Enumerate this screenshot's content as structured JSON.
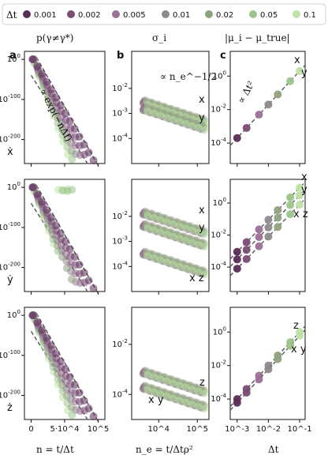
{
  "legend": {
    "title": "Δt",
    "entries": [
      {
        "label": "0.001",
        "color": "#5a2d57"
      },
      {
        "label": "0.002",
        "color": "#7a4d74"
      },
      {
        "label": "0.005",
        "color": "#9a7196"
      },
      {
        "label": "0.01",
        "color": "#8e8a8d"
      },
      {
        "label": "0.02",
        "color": "#8fa27f"
      },
      {
        "label": "0.05",
        "color": "#9dc48a"
      },
      {
        "label": "0.1",
        "color": "#bfe3a8"
      }
    ]
  },
  "columns": {
    "col0_title": "p(γ≠γ*)",
    "col1_title": "σ_i",
    "col2_title": "|μ_i − μ_true|"
  },
  "panel_letters": {
    "a": "a",
    "b": "b",
    "c": "c"
  },
  "row_labels": [
    "ẋ",
    "ẏ",
    "ż"
  ],
  "xlabels": {
    "col0": "n = t/Δt",
    "col1": "n_e = t/Δtρ²",
    "col2": "Δt"
  },
  "annotations": {
    "col0_fit": "∝ exp(−nΔf)",
    "col1_fit": "∝ n_e^−1/2",
    "col2_fit": "∝ Δt²"
  },
  "chart_data": [
    {
      "panel": "a-row1",
      "type": "scatter",
      "xlabel": "",
      "ylabel": "",
      "xlim": [
        -10000,
        110000
      ],
      "ylim": [
        -260,
        20
      ],
      "yscale": "log10",
      "xtick_labels": [],
      "ytick_labels": [
        "10^0",
        "10^-100",
        "10^-200"
      ],
      "row_label": "ẋ",
      "fit_line": "∝ exp(−nΔf)"
    },
    {
      "panel": "a-row2",
      "type": "scatter",
      "xlim": [
        -10000,
        110000
      ],
      "ylim": [
        -260,
        20
      ],
      "yscale": "log10",
      "ytick_labels": [
        "10^0",
        "10^-100",
        "10^-200"
      ],
      "row_label": "ẏ"
    },
    {
      "panel": "a-row3",
      "type": "scatter",
      "xlim": [
        -10000,
        110000
      ],
      "ylim": [
        -260,
        20
      ],
      "yscale": "log10",
      "xtick_labels": [
        "0",
        "5·10^4",
        "10^5"
      ],
      "ytick_labels": [
        "10^0",
        "10^-100",
        "10^-200"
      ],
      "row_label": "ż",
      "xlabel": "n = t/Δt"
    },
    {
      "panel": "b-row1",
      "type": "scatter",
      "xscale": "log",
      "yscale": "log",
      "xlim": [
        2000,
        200000
      ],
      "ylim": [
        1e-05,
        0.3
      ],
      "ytick_labels": [
        "10^-2",
        "10^-3",
        "10^-4"
      ],
      "series_labels": [
        "x",
        "y"
      ],
      "fit_line": "∝ n_e^−1/2"
    },
    {
      "panel": "b-row2",
      "type": "scatter",
      "xscale": "log",
      "yscale": "log",
      "xlim": [
        2000,
        200000
      ],
      "ylim": [
        1e-05,
        0.3
      ],
      "ytick_labels": [
        "10^-2",
        "10^-3",
        "10^-4"
      ],
      "series_labels": [
        "x",
        "y",
        "x z"
      ]
    },
    {
      "panel": "b-row3",
      "type": "scatter",
      "xscale": "log",
      "yscale": "log",
      "xlim": [
        2000,
        200000
      ],
      "ylim": [
        1e-05,
        0.3
      ],
      "xtick_labels": [
        "10^4",
        "10^5"
      ],
      "ytick_labels": [
        "10^-2",
        "10^-4"
      ],
      "series_labels": [
        "z",
        "x y"
      ],
      "xlabel": "n_e = t/Δtρ²"
    },
    {
      "panel": "c-row1",
      "type": "scatter",
      "xscale": "log",
      "yscale": "log",
      "xlim": [
        0.0006,
        0.15
      ],
      "ylim": [
        6e-06,
        30
      ],
      "x": [
        0.001,
        0.002,
        0.005,
        0.01,
        0.02,
        0.05,
        0.1
      ],
      "ytick_labels": [
        "10^0",
        "10^-2",
        "10^-4"
      ],
      "series_labels": [
        "x",
        "y"
      ],
      "fit_line": "∝ Δt²"
    },
    {
      "panel": "c-row2",
      "type": "scatter",
      "xscale": "log",
      "yscale": "log",
      "xlim": [
        0.0006,
        0.15
      ],
      "ylim": [
        3e-06,
        30
      ],
      "x": [
        0.001,
        0.002,
        0.005,
        0.01,
        0.02,
        0.05,
        0.1
      ],
      "ytick_labels": [
        "10^0",
        "10^-2",
        "10^-4"
      ],
      "series_labels": [
        "x",
        "y",
        "x z"
      ]
    },
    {
      "panel": "c-row3",
      "type": "scatter",
      "xscale": "log",
      "yscale": "log",
      "xlim": [
        0.0006,
        0.15
      ],
      "ylim": [
        6e-06,
        30
      ],
      "x": [
        0.001,
        0.002,
        0.005,
        0.01,
        0.02,
        0.05,
        0.1
      ],
      "xtick_labels": [
        "10^-3",
        "10^-2",
        "10^-1"
      ],
      "ytick_labels": [
        "10^0",
        "10^-2",
        "10^-4"
      ],
      "series_labels": [
        "z",
        "x y"
      ],
      "xlabel": "Δt"
    }
  ]
}
